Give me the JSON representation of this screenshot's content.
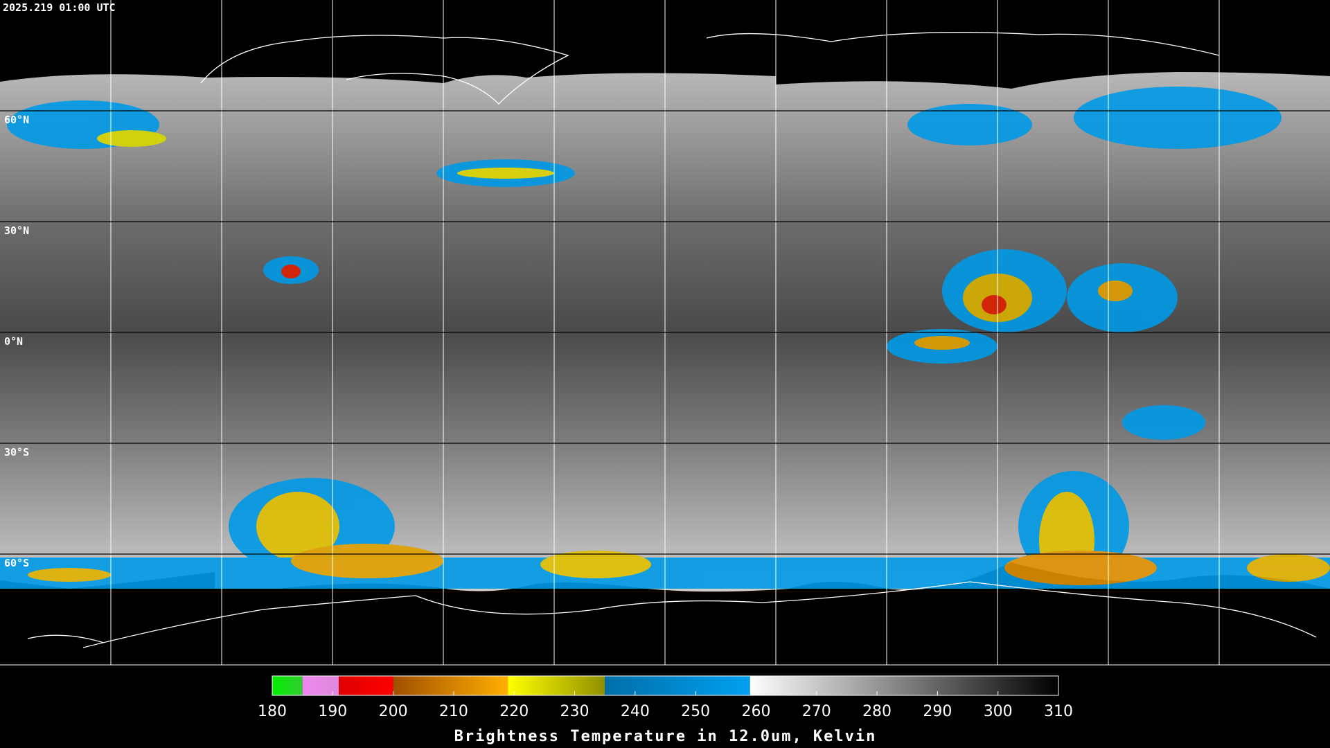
{
  "timestamp": "2025.219 01:00 UTC",
  "lat_lines": [
    {
      "value": 60,
      "label": "60°N"
    },
    {
      "value": 30,
      "label": "30°N"
    },
    {
      "value": 0,
      "label": "0°N"
    },
    {
      "value": -30,
      "label": "30°S"
    },
    {
      "value": -60,
      "label": "60°S"
    }
  ],
  "colorbar": {
    "title": "Brightness Temperature in 12.0um, Kelvin",
    "range": [
      180,
      310
    ],
    "ticks": [
      180,
      190,
      200,
      210,
      220,
      230,
      240,
      250,
      260,
      270,
      280,
      290,
      300,
      310
    ],
    "segments": [
      {
        "from": 180,
        "to": 185,
        "colors": [
          "#00ee00",
          "#33cc33"
        ]
      },
      {
        "from": 185,
        "to": 191,
        "colors": [
          "#ee88ee",
          "#dd88dd"
        ]
      },
      {
        "from": 191,
        "to": 200,
        "colors": [
          "#dd0000",
          "#ff0000"
        ]
      },
      {
        "from": 200,
        "to": 219,
        "colors": [
          "#a05000",
          "#ffb000"
        ]
      },
      {
        "from": 219,
        "to": 235,
        "colors": [
          "#ffff00",
          "#909000"
        ]
      },
      {
        "from": 235,
        "to": 259,
        "colors": [
          "#006fa8",
          "#00a0f0"
        ]
      },
      {
        "from": 259,
        "to": 310,
        "colors": [
          "#ffffff",
          "#000000"
        ]
      }
    ]
  }
}
